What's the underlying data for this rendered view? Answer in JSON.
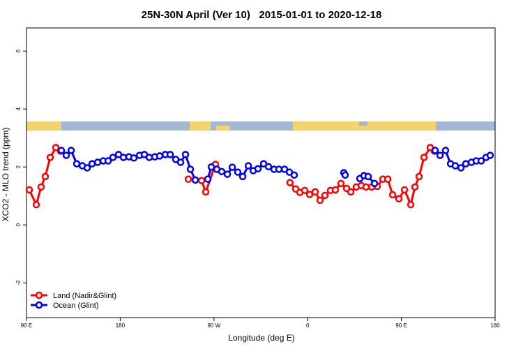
{
  "chart_data": {
    "type": "line",
    "title": "25N-30N April (Ver 10)   2015-01-01 to 2020-12-18",
    "x_label": "Longitude (deg E)",
    "y_label": "XCO2 - MLO trend (ppm)",
    "xlim": [
      90,
      540
    ],
    "ylim": [
      -3.2,
      6.8
    ],
    "xticks": [
      {
        "value": 90,
        "label": "90 E"
      },
      180,
      {
        "value": 270,
        "label": "90 W"
      },
      {
        "value": 360,
        "label": "0"
      },
      {
        "value": 450,
        "label": "90 E"
      },
      {
        "value": 540,
        "label": "180"
      }
    ],
    "yticks": [
      -2,
      0,
      2,
      4,
      6
    ],
    "legend": "bottom-left",
    "series": [
      {
        "name": "Land (Nadir&Glint)",
        "color": "#ff0000",
        "x": [
          92.7,
          99.4,
          104,
          108,
          112.8,
          118.1,
          122.8,
          null,
          245.4,
          252.1,
          258.1,
          262.1,
          271.5,
          null,
          343,
          348.5,
          352.5,
          357.2,
          361.9,
          367.2,
          371.9,
          376.6,
          381.9,
          386.6,
          392,
          397.4,
          401.4,
          406.7,
          411.4,
          416.1,
          421.5,
          426.8,
          432.2,
          436.9,
          441.6,
          447.6,
          453,
          459,
          463,
          467,
          471.7,
          477.7,
          481.7
        ],
        "values": [
          1.21,
          0.7,
          1.31,
          1.67,
          2.33,
          2.67,
          2.55,
          null,
          1.58,
          1.55,
          1.53,
          1.14,
          2.09,
          null,
          1.46,
          1.24,
          1.12,
          1.19,
          1.05,
          1.14,
          0.85,
          1.02,
          1.19,
          1.21,
          1.43,
          1.26,
          1.14,
          1.31,
          1.36,
          1.31,
          1.31,
          1.33,
          1.58,
          1.58,
          1.04,
          0.9,
          1.21,
          0.7,
          1.31,
          1.67,
          2.33,
          2.67,
          2.55
        ]
      },
      {
        "name": "Ocean (Glint)",
        "color": "#0000ee",
        "x": [
          123.5,
          128.2,
          132.9,
          138.2,
          143.6,
          148.3,
          153,
          158.3,
          163.7,
          168.4,
          173,
          178.4,
          183.1,
          188.4,
          193.1,
          198.5,
          203.2,
          207.9,
          213.2,
          217.9,
          223.3,
          228,
          233.3,
          238,
          242.7,
          247.4,
          252.1,
          null,
          264.1,
          267.5,
          272.8,
          277.5,
          282.9,
          287.6,
          292.9,
          297.6,
          303,
          307.7,
          312.3,
          317.7,
          322.4,
          327.7,
          332.4,
          337.8,
          342.5,
          347.1,
          null,
          394.7,
          396,
          null,
          410.1,
          414.1,
          418.1,
          424.2,
          null,
          482.4,
          487.1,
          492.4,
          497.2,
          501.8,
          507.2,
          511.9,
          517.2,
          521.9,
          526.6,
          531.3,
          535.3
        ],
        "values": [
          2.57,
          2.4,
          2.57,
          2.11,
          2.04,
          1.97,
          2.11,
          2.16,
          2.21,
          2.21,
          2.33,
          2.43,
          2.33,
          2.35,
          2.31,
          2.4,
          2.43,
          2.33,
          2.35,
          2.38,
          2.43,
          2.43,
          2.26,
          2.16,
          2.43,
          1.92,
          1.55,
          null,
          1.58,
          2,
          1.92,
          1.84,
          1.75,
          1.99,
          1.82,
          1.67,
          2.04,
          1.87,
          1.94,
          2.11,
          2.01,
          1.92,
          1.92,
          1.92,
          1.82,
          1.72,
          null,
          1.8,
          1.72,
          null,
          1.6,
          1.7,
          1.67,
          1.43,
          null,
          2.57,
          2.4,
          2.57,
          2.11,
          2.04,
          1.97,
          2.11,
          2.16,
          2.21,
          2.21,
          2.33,
          2.4
        ]
      }
    ]
  }
}
